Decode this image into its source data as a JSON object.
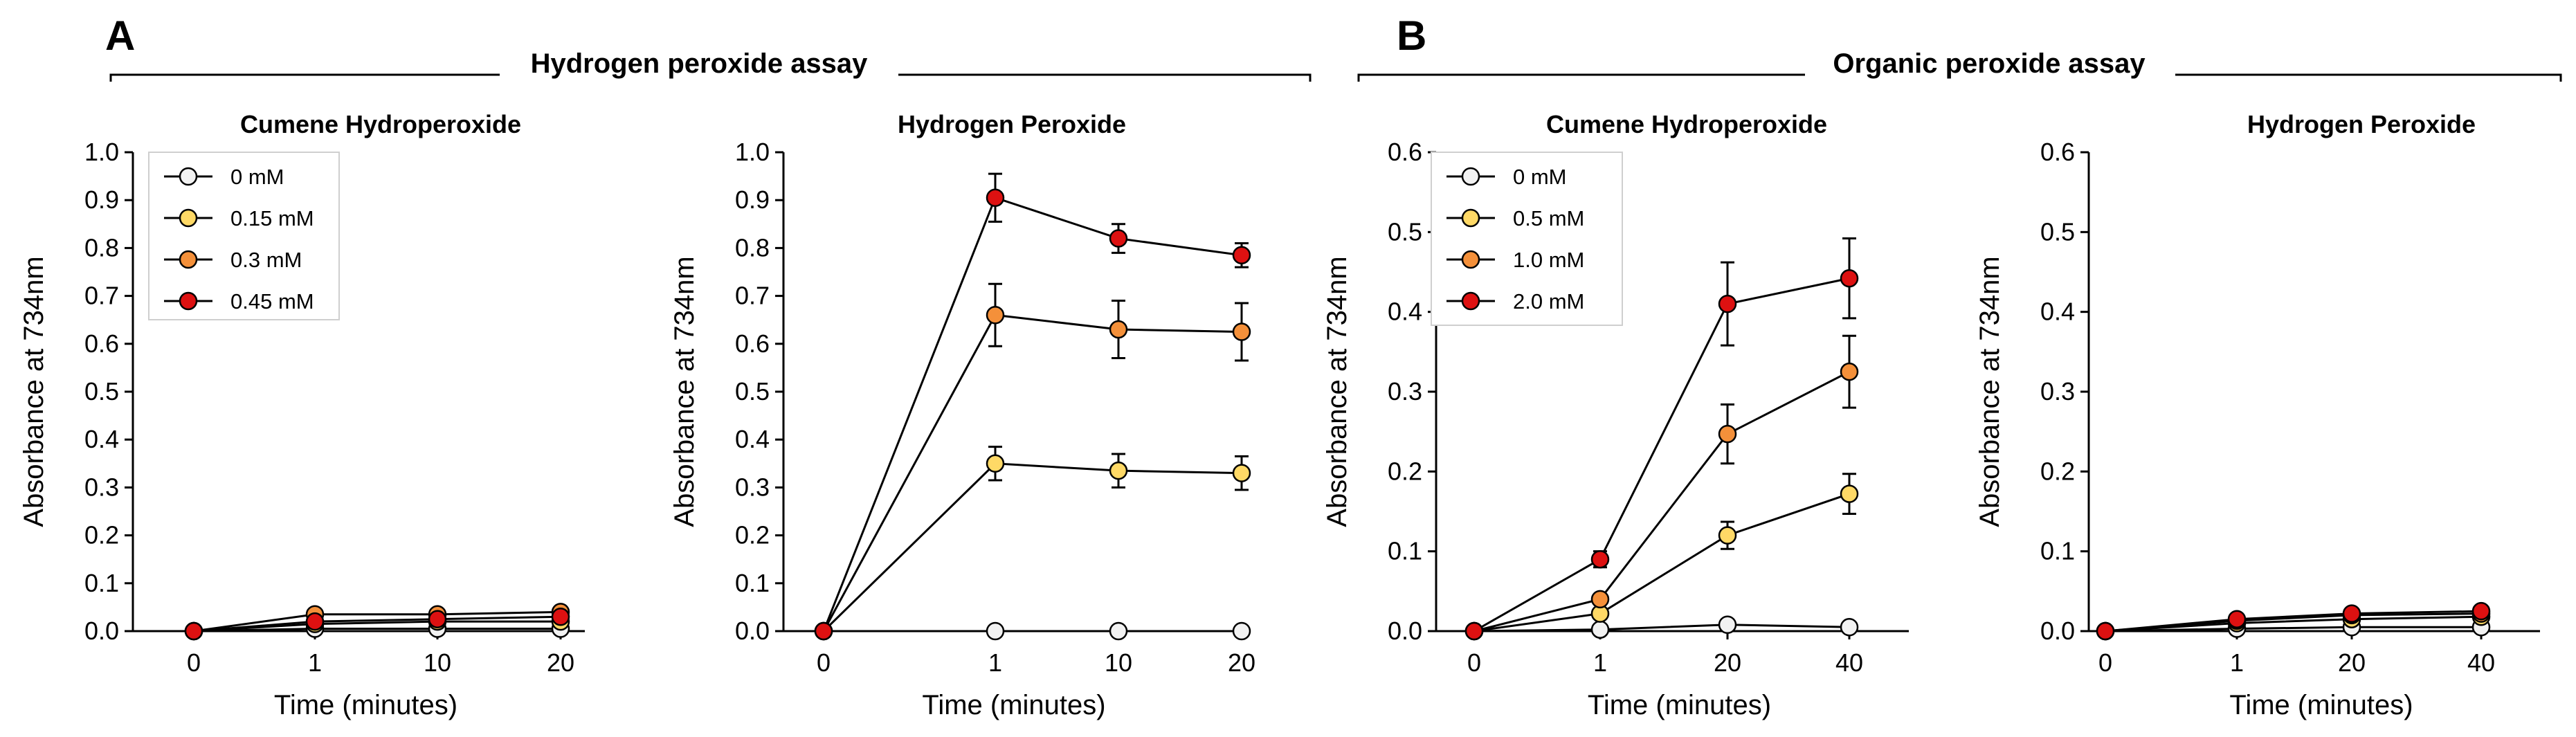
{
  "colors": {
    "0": "#f2f2f2",
    "1": "#ffd966",
    "2": "#f4903a",
    "3": "#dd1111"
  },
  "sections": [
    {
      "letter": "A",
      "title": "Hydrogen peroxide assay"
    },
    {
      "letter": "B",
      "title": "Organic peroxide assay"
    }
  ],
  "chart_data": [
    {
      "type": "line",
      "title": "Cumene Hydroperoxide",
      "xlabel": "Time (minutes)",
      "ylabel": "Absorbance at 734nm",
      "categories": [
        "0",
        "1",
        "10",
        "20"
      ],
      "ylim": [
        0,
        1.0
      ],
      "yticks": [
        "0.0",
        "0.1",
        "0.2",
        "0.3",
        "0.4",
        "0.5",
        "0.6",
        "0.7",
        "0.8",
        "0.9",
        "1.0"
      ],
      "legend": true,
      "series": [
        {
          "name": "0 mM",
          "color_index": 0,
          "values": [
            0.0,
            0.005,
            0.005,
            0.005
          ],
          "errors": [
            0,
            0,
            0,
            0
          ]
        },
        {
          "name": "0.15 mM",
          "color_index": 1,
          "values": [
            0.0,
            0.015,
            0.02,
            0.02
          ],
          "errors": [
            0,
            0.005,
            0.005,
            0.005
          ]
        },
        {
          "name": "0.3 mM",
          "color_index": 2,
          "values": [
            0.0,
            0.035,
            0.035,
            0.04
          ],
          "errors": [
            0,
            0.005,
            0.005,
            0.005
          ]
        },
        {
          "name": "0.45 mM",
          "color_index": 3,
          "values": [
            0.0,
            0.02,
            0.025,
            0.03
          ],
          "errors": [
            0,
            0.005,
            0.005,
            0.005
          ]
        }
      ]
    },
    {
      "type": "line",
      "title": "Hydrogen Peroxide",
      "xlabel": "Time (minutes)",
      "ylabel": "Absorbance at 734nm",
      "categories": [
        "0",
        "1",
        "10",
        "20"
      ],
      "ylim": [
        0,
        1.0
      ],
      "yticks": [
        "0.0",
        "0.1",
        "0.2",
        "0.3",
        "0.4",
        "0.5",
        "0.6",
        "0.7",
        "0.8",
        "0.9",
        "1.0"
      ],
      "legend": false,
      "series": [
        {
          "name": "0 mM",
          "color_index": 0,
          "values": [
            0.0,
            0.0,
            0.0,
            0.0
          ],
          "errors": [
            0,
            0,
            0,
            0
          ]
        },
        {
          "name": "0.15 mM",
          "color_index": 1,
          "values": [
            0.0,
            0.35,
            0.335,
            0.33
          ],
          "errors": [
            0,
            0.035,
            0.035,
            0.035
          ]
        },
        {
          "name": "0.3 mM",
          "color_index": 2,
          "values": [
            0.0,
            0.66,
            0.63,
            0.625
          ],
          "errors": [
            0,
            0.065,
            0.06,
            0.06
          ]
        },
        {
          "name": "0.45 mM",
          "color_index": 3,
          "values": [
            0.0,
            0.905,
            0.82,
            0.785
          ],
          "errors": [
            0,
            0.05,
            0.03,
            0.025
          ]
        }
      ]
    },
    {
      "type": "line",
      "title": "Cumene Hydroperoxide",
      "xlabel": "Time (minutes)",
      "ylabel": "Absorbance at 734nm",
      "categories": [
        "0",
        "1",
        "20",
        "40"
      ],
      "ylim": [
        0,
        0.6
      ],
      "yticks": [
        "0.0",
        "0.1",
        "0.2",
        "0.3",
        "0.4",
        "0.5",
        "0.6"
      ],
      "legend": true,
      "series": [
        {
          "name": "0 mM",
          "color_index": 0,
          "values": [
            0.0,
            0.002,
            0.008,
            0.005
          ],
          "errors": [
            0,
            0,
            0,
            0
          ]
        },
        {
          "name": "0.5 mM",
          "color_index": 1,
          "values": [
            0.0,
            0.022,
            0.12,
            0.172
          ],
          "errors": [
            0,
            0.003,
            0.017,
            0.025
          ]
        },
        {
          "name": "1.0 mM",
          "color_index": 2,
          "values": [
            0.0,
            0.04,
            0.247,
            0.325
          ],
          "errors": [
            0,
            0.005,
            0.037,
            0.045
          ]
        },
        {
          "name": "2.0 mM",
          "color_index": 3,
          "values": [
            0.0,
            0.09,
            0.41,
            0.442
          ],
          "errors": [
            0,
            0.01,
            0.052,
            0.05
          ]
        }
      ]
    },
    {
      "type": "line",
      "title": "Hydrogen Peroxide",
      "xlabel": "Time (minutes)",
      "ylabel": "Absorbance at 734nm",
      "categories": [
        "0",
        "1",
        "20",
        "40"
      ],
      "ylim": [
        0,
        0.6
      ],
      "yticks": [
        "0.0",
        "0.1",
        "0.2",
        "0.3",
        "0.4",
        "0.5",
        "0.6"
      ],
      "legend": false,
      "series": [
        {
          "name": "0 mM",
          "color_index": 0,
          "values": [
            0.0,
            0.003,
            0.005,
            0.005
          ],
          "errors": [
            0,
            0,
            0,
            0
          ]
        },
        {
          "name": "0.5 mM",
          "color_index": 1,
          "values": [
            0.0,
            0.01,
            0.015,
            0.018
          ],
          "errors": [
            0,
            0,
            0,
            0
          ]
        },
        {
          "name": "1.0 mM",
          "color_index": 2,
          "values": [
            0.0,
            0.013,
            0.02,
            0.022
          ],
          "errors": [
            0,
            0,
            0,
            0
          ]
        },
        {
          "name": "2.0 mM",
          "color_index": 3,
          "values": [
            0.0,
            0.015,
            0.022,
            0.025
          ],
          "errors": [
            0,
            0,
            0,
            0
          ]
        }
      ]
    }
  ]
}
